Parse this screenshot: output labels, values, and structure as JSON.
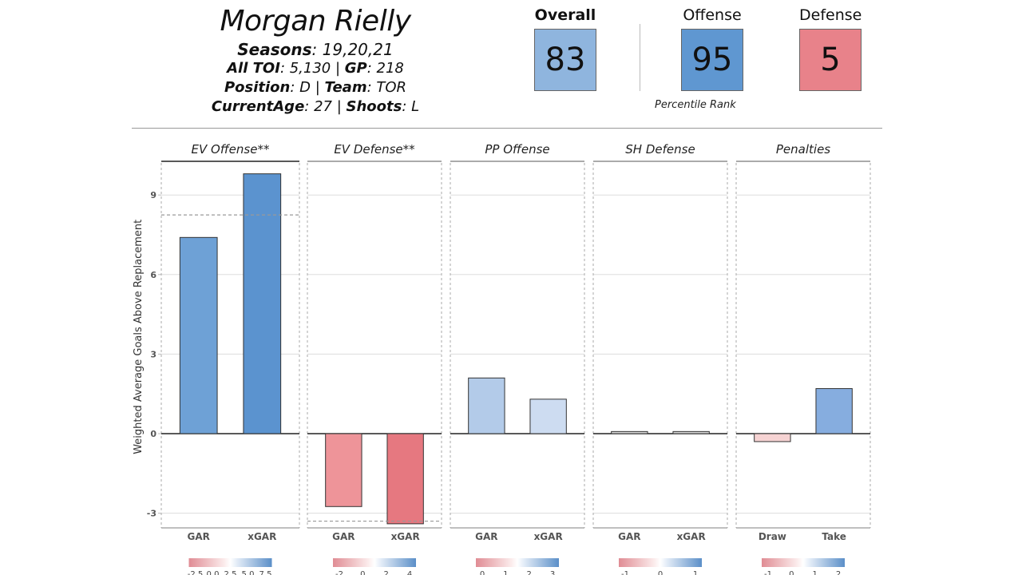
{
  "player": {
    "name": "Morgan Rielly",
    "seasons_label": "Seasons",
    "seasons_value": ": 19,20,21",
    "toi_label": "All TOI",
    "toi_value": ": 5,130 | ",
    "gp_label": "GP",
    "gp_value": ": 218",
    "position_label": "Position",
    "position_value": ": D | ",
    "team_label": "Team",
    "team_value": ": TOR",
    "age_label": "CurrentAge",
    "age_value": ": 27 | ",
    "shoots_label": "Shoots",
    "shoots_value": ": L"
  },
  "ratings": {
    "overall": {
      "label": "Overall",
      "value": "83",
      "color": "#8fb5de"
    },
    "offense": {
      "label": "Offense",
      "value": "95",
      "color": "#5f97d1"
    },
    "defense": {
      "label": "Defense",
      "value": "5",
      "color": "#e8828a"
    },
    "caption": "Percentile Rank"
  },
  "chart_data": {
    "type": "bar",
    "ylabel": "Weighted Average Goals Above Replacement",
    "ylim": [
      -3.6,
      10.3
    ],
    "yticks": [
      -3,
      0,
      3,
      6,
      9
    ],
    "grid": true,
    "panels": [
      {
        "title": "EV Offense**",
        "categories": [
          "GAR",
          "xGAR"
        ],
        "values": [
          7.4,
          9.8
        ],
        "colors": [
          "#6ea1d6",
          "#5b93cf"
        ],
        "reference_line": 8.25,
        "legend_ticks": [
          "-2.5",
          "0.0",
          "2.5",
          "5.0",
          "7.5"
        ]
      },
      {
        "title": "EV Defense**",
        "categories": [
          "GAR",
          "xGAR"
        ],
        "values": [
          -2.75,
          -3.4
        ],
        "colors": [
          "#ee9499",
          "#e67880"
        ],
        "reference_line": -3.3,
        "legend_ticks": [
          "-2",
          "0",
          "2",
          "4"
        ]
      },
      {
        "title": "PP Offense",
        "categories": [
          "GAR",
          "xGAR"
        ],
        "values": [
          2.1,
          1.3
        ],
        "colors": [
          "#b3cbe9",
          "#cddcf1"
        ],
        "reference_line": null,
        "legend_ticks": [
          "0",
          "1",
          "2",
          "3"
        ]
      },
      {
        "title": "SH Defense",
        "categories": [
          "GAR",
          "xGAR"
        ],
        "values": [
          0.08,
          0.08
        ],
        "colors": [
          "#d8d8d8",
          "#d8d8d8"
        ],
        "reference_line": null,
        "legend_ticks": [
          "-1",
          "0",
          "1"
        ]
      },
      {
        "title": "Penalties",
        "categories": [
          "Draw",
          "Take"
        ],
        "values": [
          -0.3,
          1.7
        ],
        "colors": [
          "#f6d3d3",
          "#86addf"
        ],
        "reference_line": null,
        "legend_ticks": [
          "-1",
          "0",
          "1",
          "2"
        ]
      }
    ]
  }
}
